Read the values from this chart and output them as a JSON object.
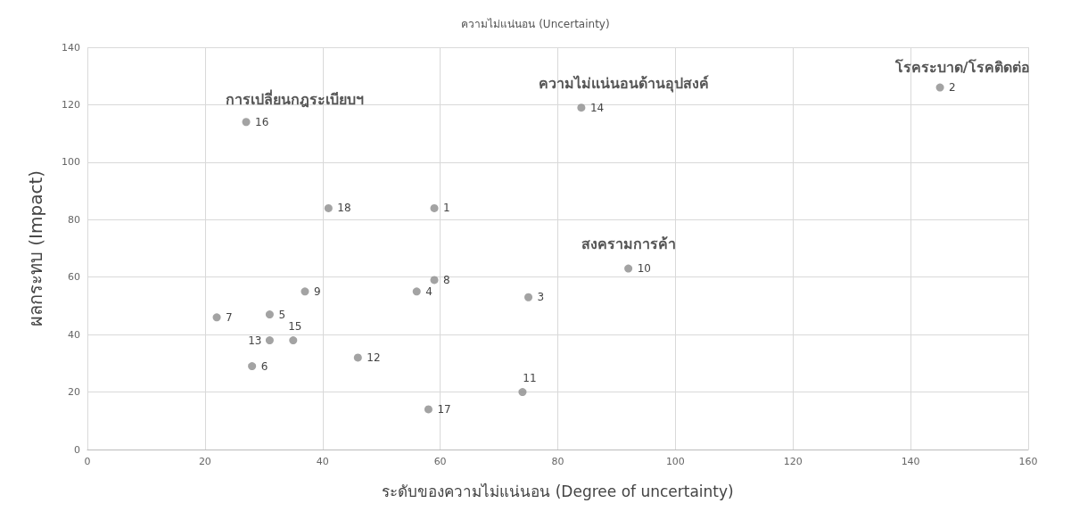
{
  "chart_data": {
    "type": "scatter",
    "title": "ความไม่แน่นอน (Uncertainty)",
    "xlabel": "ระดับของความไม่แน่นอน (Degree of uncertainty)",
    "ylabel": "ผลกระทบ (Impact)",
    "x": [
      59,
      145,
      75,
      56,
      31,
      28,
      22,
      59,
      37,
      92,
      74,
      46,
      31,
      84,
      35,
      27,
      58,
      41
    ],
    "series": [
      {
        "color": "#8c8c8c",
        "values": [
          84,
          126,
          53,
          55,
          47,
          29,
          46,
          59,
          55,
          63,
          20,
          32,
          38,
          119,
          38,
          114,
          14,
          84
        ]
      }
    ],
    "xlim": [
      0,
      160
    ],
    "xticks": [
      0,
      20,
      40,
      60,
      80,
      100,
      120,
      140,
      160
    ],
    "ylim": [
      0,
      140
    ],
    "yticks": [
      0,
      20,
      40,
      60,
      80,
      100,
      120,
      140
    ],
    "grid": true,
    "marker": "circle",
    "annotations": [
      "การเปลี่ยนกฎระเบียบฯ",
      "ความไม่แน่นอนด้านอุปสงค์",
      "สงครามการค้า",
      "โรคระบาด/โรคติดต่อ",
      {
        "text": "1",
        "x": 59,
        "y": 84
      },
      {
        "text": "2",
        "x": 145,
        "y": 126
      },
      {
        "text": "3",
        "x": 75,
        "y": 53
      },
      {
        "text": "4",
        "x": 56,
        "y": 55
      },
      {
        "text": "5",
        "x": 31,
        "y": 47
      },
      {
        "text": "6",
        "x": 28,
        "y": 29
      },
      {
        "text": "7",
        "x": 22,
        "y": 46
      },
      {
        "text": "8",
        "x": 59,
        "y": 59
      },
      {
        "text": "9",
        "x": 37,
        "y": 55
      },
      {
        "text": "10",
        "x": 92,
        "y": 63
      },
      {
        "text": "11",
        "x": 74,
        "y": 20
      },
      {
        "text": "12",
        "x": 46,
        "y": 32
      },
      {
        "text": "13",
        "x": 31,
        "y": 38
      },
      {
        "text": "14",
        "x": 84,
        "y": 119
      },
      {
        "text": "15",
        "x": 35,
        "y": 38
      },
      {
        "text": "16",
        "x": 27,
        "y": 114
      },
      {
        "text": "17",
        "x": 58,
        "y": 14
      },
      {
        "text": "18",
        "x": 41,
        "y": 84
      }
    ]
  }
}
